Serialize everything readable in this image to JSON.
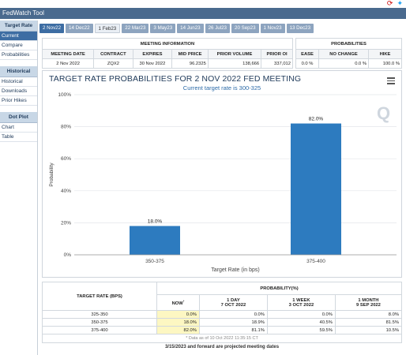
{
  "window": {
    "title": "FedWatch Tool"
  },
  "sidebar": {
    "sections": [
      {
        "heading": "Target Rate",
        "items": [
          "Current",
          "Compare",
          "Probabilities"
        ]
      },
      {
        "heading": "Historical",
        "items": [
          "Historical",
          "Downloads",
          "Prior Hikes"
        ]
      },
      {
        "heading": "Dot Plot",
        "items": [
          "Chart",
          "Table"
        ]
      }
    ]
  },
  "tabs": [
    "2 Nov22",
    "14 Dec22",
    "1 Feb23",
    "22 Mar23",
    "3 May23",
    "14 Jun23",
    "26 Jul23",
    "20 Sep23",
    "1 Nov23",
    "13 Dec23"
  ],
  "meeting_info": {
    "heading": "MEETING INFORMATION",
    "columns": [
      "MEETING DATE",
      "CONTRACT",
      "EXPIRES",
      "MID PRICE",
      "PRIOR VOLUME",
      "PRIOR OI"
    ],
    "values": [
      "2 Nov 2022",
      "ZQX2",
      "30 Nov 2022",
      "96.2325",
      "138,666",
      "337,012"
    ]
  },
  "probabilities_box": {
    "heading": "PROBABILITIES",
    "columns": [
      "EASE",
      "NO CHANGE",
      "HIKE"
    ],
    "values": [
      "0.0 %",
      "0.0 %",
      "100.0 %"
    ]
  },
  "chart": {
    "title": "TARGET RATE PROBABILITIES FOR 2 NOV 2022 FED MEETING",
    "subtitle": "Current target rate is 300-325",
    "watermark": "Q"
  },
  "chart_data": {
    "type": "bar",
    "categories": [
      "350-375",
      "375-400"
    ],
    "values": [
      18.0,
      82.0
    ],
    "data_labels": [
      "18.0%",
      "82.0%"
    ],
    "title": "TARGET RATE PROBABILITIES FOR 2 NOV 2022 FED MEETING",
    "subtitle": "Current target rate is 300-325",
    "xlabel": "Target Rate (in bps)",
    "ylabel": "Probability",
    "ylim": [
      0,
      100
    ],
    "yticks": [
      "0%",
      "20%",
      "40%",
      "60%",
      "80%",
      "100%"
    ],
    "ytick_values": [
      0,
      20,
      40,
      60,
      80,
      100
    ],
    "grid": true,
    "color": "#2d7bbf"
  },
  "prob_table": {
    "rate_header": "TARGET RATE (BPS)",
    "prob_header": "PROBABILITY(%)",
    "columns": [
      {
        "line1": "NOW",
        "line2": ""
      },
      {
        "line1": "1 DAY",
        "line2": "7 OCT 2022"
      },
      {
        "line1": "1 WEEK",
        "line2": "3 OCT 2022"
      },
      {
        "line1": "1 MONTH",
        "line2": "9 SEP 2022"
      }
    ],
    "rows": [
      {
        "rate": "325-350",
        "vals": [
          "0.0%",
          "0.0%",
          "0.0%",
          "8.0%"
        ]
      },
      {
        "rate": "350-375",
        "vals": [
          "18.0%",
          "18.9%",
          "40.5%",
          "81.5%"
        ]
      },
      {
        "rate": "375-400",
        "vals": [
          "82.0%",
          "81.1%",
          "59.5%",
          "10.5%"
        ]
      }
    ],
    "note": "* Data as of 10 Oct 2022 11:35:15 CT"
  },
  "footer": "3/15/2023 and forward are projected meeting dates"
}
